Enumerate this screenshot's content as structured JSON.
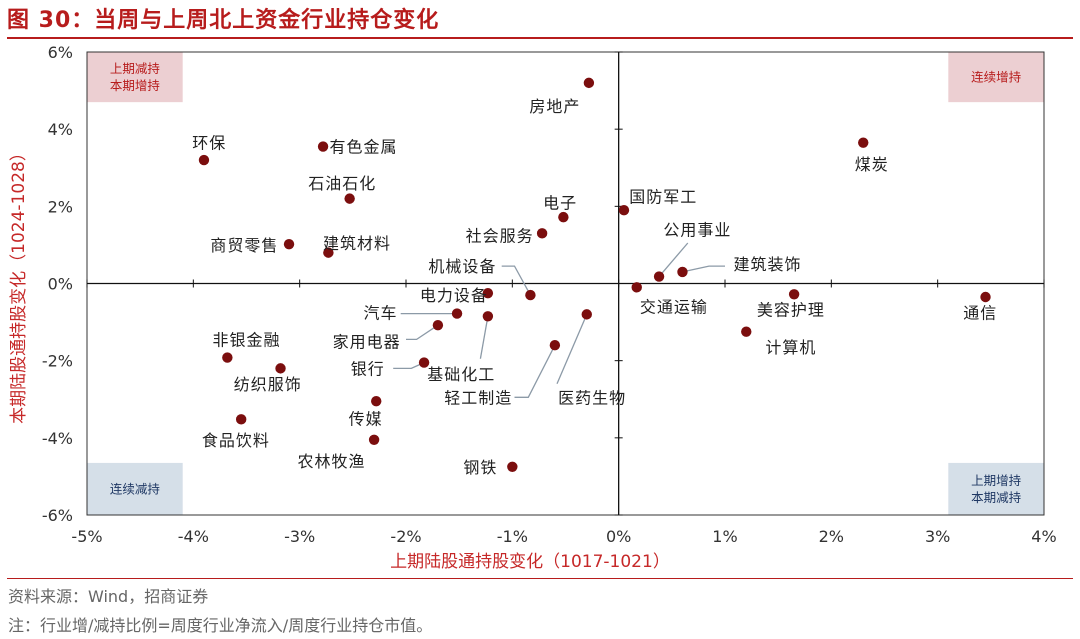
{
  "title": "图 30：当周与上周北上资金行业持仓变化",
  "colors": {
    "accent": "#b71c1c",
    "point": "#7b0e0e",
    "axis_label": "#c62828",
    "quadrant_red": "#eccfd2",
    "quadrant_blue": "#d5dfe8",
    "quadrant_red_text": "#b71c1c",
    "quadrant_blue_text": "#1f3864"
  },
  "chart_data": {
    "type": "scatter",
    "title": "",
    "xlabel": "上期陆股通持股变化（1017-1021）",
    "ylabel": "本期陆股通持股变化（1024-1028）",
    "xlim": [
      -5,
      4
    ],
    "ylim": [
      -6,
      6
    ],
    "unit": "%",
    "xticks": [
      "-5%",
      "-4%",
      "-3%",
      "-2%",
      "-1%",
      "0%",
      "1%",
      "2%",
      "3%",
      "4%"
    ],
    "yticks": [
      "6%",
      "4%",
      "2%",
      "0%",
      "-2%",
      "-4%",
      "-6%"
    ],
    "quadrants": [
      {
        "lines": [
          "上期减持",
          "本期增持"
        ],
        "x": [
          -5,
          -4.1
        ],
        "y": [
          4.7,
          6
        ],
        "tone": "red"
      },
      {
        "lines": [
          "连续增持"
        ],
        "x": [
          3.1,
          4
        ],
        "y": [
          4.7,
          6
        ],
        "tone": "red"
      },
      {
        "lines": [
          "连续减持"
        ],
        "x": [
          -5,
          -4.1
        ],
        "y": [
          -6,
          -4.65
        ],
        "tone": "blue"
      },
      {
        "lines": [
          "上期增持",
          "本期减持"
        ],
        "x": [
          3.1,
          4
        ],
        "y": [
          -6,
          -4.65
        ],
        "tone": "blue"
      }
    ],
    "points": [
      {
        "name": "房地产",
        "x": -0.28,
        "y": 5.2,
        "lx": -0.6,
        "ly": 4.6,
        "anchor": "middle"
      },
      {
        "name": "环保",
        "x": -3.9,
        "y": 3.2,
        "lx": -3.85,
        "ly": 3.65,
        "anchor": "middle"
      },
      {
        "name": "有色金属",
        "x": -2.78,
        "y": 3.55,
        "lx": -2.72,
        "ly": 3.55,
        "anchor": "start"
      },
      {
        "name": "煤炭",
        "x": 2.3,
        "y": 3.65,
        "lx": 2.38,
        "ly": 3.1,
        "anchor": "middle"
      },
      {
        "name": "石油石化",
        "x": -2.53,
        "y": 2.2,
        "lx": -2.6,
        "ly": 2.6,
        "anchor": "middle"
      },
      {
        "name": "电子",
        "x": -0.52,
        "y": 1.72,
        "lx": -0.55,
        "ly": 2.1,
        "anchor": "middle"
      },
      {
        "name": "国防军工",
        "x": 0.05,
        "y": 1.9,
        "lx": 0.1,
        "ly": 2.25,
        "anchor": "start"
      },
      {
        "name": "社会服务",
        "x": -0.72,
        "y": 1.3,
        "lx": -0.8,
        "ly": 1.25,
        "anchor": "end"
      },
      {
        "name": "公用事业",
        "x": 0.38,
        "y": 0.18,
        "lx": 0.42,
        "ly": 1.4,
        "anchor": "start",
        "leader": [
          [
            0.38,
            0.18
          ],
          [
            0.65,
            1.05
          ]
        ]
      },
      {
        "name": "商贸零售",
        "x": -3.1,
        "y": 1.02,
        "lx": -3.2,
        "ly": 1.0,
        "anchor": "end"
      },
      {
        "name": "建筑材料",
        "x": -2.73,
        "y": 0.8,
        "lx": -2.78,
        "ly": 1.05,
        "anchor": "start"
      },
      {
        "name": "建筑装饰",
        "x": 0.6,
        "y": 0.3,
        "lx": 1.08,
        "ly": 0.5,
        "anchor": "start",
        "leader": [
          [
            0.6,
            0.3
          ],
          [
            0.85,
            0.45
          ],
          [
            1.0,
            0.45
          ]
        ]
      },
      {
        "name": "机械设备",
        "x": -0.83,
        "y": -0.3,
        "lx": -1.15,
        "ly": 0.45,
        "anchor": "end",
        "leader": [
          [
            -0.83,
            -0.3
          ],
          [
            -0.98,
            0.45
          ],
          [
            -1.1,
            0.45
          ]
        ]
      },
      {
        "name": "交通运输",
        "x": 0.17,
        "y": -0.1,
        "lx": 0.2,
        "ly": -0.6,
        "anchor": "start"
      },
      {
        "name": "电力设备",
        "x": -1.23,
        "y": -0.25,
        "lx": -1.55,
        "ly": -0.3,
        "anchor": "middle"
      },
      {
        "name": "美容护理",
        "x": 1.65,
        "y": -0.28,
        "lx": 1.3,
        "ly": -0.68,
        "anchor": "start"
      },
      {
        "name": "通信",
        "x": 3.45,
        "y": -0.35,
        "lx": 3.4,
        "ly": -0.75,
        "anchor": "middle"
      },
      {
        "name": "汽车",
        "x": -1.52,
        "y": -0.78,
        "lx": -2.08,
        "ly": -0.75,
        "anchor": "end",
        "leader": [
          [
            -1.52,
            -0.78
          ],
          [
            -2.05,
            -0.78
          ]
        ]
      },
      {
        "name": "家用电器",
        "x": -1.7,
        "y": -1.08,
        "lx": -2.05,
        "ly": -1.5,
        "anchor": "end",
        "leader": [
          [
            -1.7,
            -1.08
          ],
          [
            -1.9,
            -1.45
          ],
          [
            -2.0,
            -1.45
          ]
        ]
      },
      {
        "name": "基础化工",
        "x": -1.23,
        "y": -0.85,
        "lx": -1.48,
        "ly": -2.35,
        "anchor": "middle",
        "leader": [
          [
            -1.23,
            -0.85
          ],
          [
            -1.3,
            -1.95
          ]
        ]
      },
      {
        "name": "计算机",
        "x": 1.2,
        "y": -1.25,
        "lx": 1.38,
        "ly": -1.65,
        "anchor": "start"
      },
      {
        "name": "医药生物",
        "x": -0.3,
        "y": -0.8,
        "lx": -0.25,
        "ly": -2.95,
        "anchor": "middle",
        "leader": [
          [
            -0.3,
            -0.8
          ],
          [
            -0.58,
            -2.6
          ]
        ]
      },
      {
        "name": "非银金融",
        "x": -3.68,
        "y": -1.92,
        "lx": -3.5,
        "ly": -1.45,
        "anchor": "middle"
      },
      {
        "name": "纺织服饰",
        "x": -3.18,
        "y": -2.2,
        "lx": -3.3,
        "ly": -2.6,
        "anchor": "middle"
      },
      {
        "name": "银行",
        "x": -1.83,
        "y": -2.05,
        "lx": -2.2,
        "ly": -2.2,
        "anchor": "end",
        "leader": [
          [
            -1.83,
            -2.05
          ],
          [
            -1.95,
            -2.2
          ],
          [
            -2.12,
            -2.2
          ]
        ]
      },
      {
        "name": "轻工制造",
        "x": -0.6,
        "y": -1.6,
        "lx": -1.32,
        "ly": -2.95,
        "anchor": "middle",
        "leader": [
          [
            -0.6,
            -1.6
          ],
          [
            -0.85,
            -2.95
          ],
          [
            -0.98,
            -2.95
          ]
        ]
      },
      {
        "name": "传媒",
        "x": -2.28,
        "y": -3.05,
        "lx": -2.38,
        "ly": -3.5,
        "anchor": "middle"
      },
      {
        "name": "食品饮料",
        "x": -3.55,
        "y": -3.52,
        "lx": -3.6,
        "ly": -4.05,
        "anchor": "middle"
      },
      {
        "name": "农林牧渔",
        "x": -2.3,
        "y": -4.05,
        "lx": -2.7,
        "ly": -4.6,
        "anchor": "middle"
      },
      {
        "name": "钢铁",
        "x": -1.0,
        "y": -4.75,
        "lx": -1.3,
        "ly": -4.75,
        "anchor": "middle"
      }
    ]
  },
  "footer": {
    "source": "资料来源：Wind，招商证券",
    "note": "注：行业增/减持比例=周度行业净流入/周度行业持仓市值。"
  }
}
